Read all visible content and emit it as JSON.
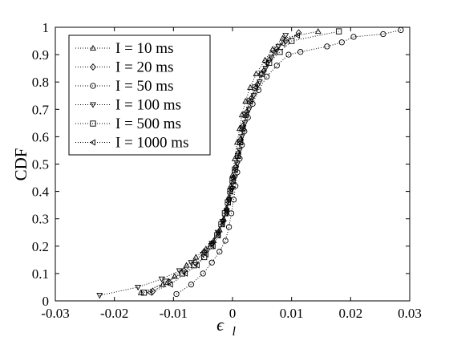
{
  "chart_data": {
    "type": "scatter",
    "title": "",
    "xlabel": "ϵ",
    "xlabel_subscript": "l",
    "ylabel": "CDF",
    "xlim": [
      -0.03,
      0.03
    ],
    "ylim": [
      0,
      1
    ],
    "x_ticks": [
      -0.03,
      -0.02,
      -0.01,
      0,
      0.01,
      0.02,
      0.03
    ],
    "x_tick_labels": [
      "-0.03",
      "-0.02",
      "-0.01",
      "0",
      "0.01",
      "0.02",
      "0.03"
    ],
    "y_ticks": [
      0,
      0.1,
      0.2,
      0.3,
      0.4,
      0.5,
      0.6,
      0.7,
      0.8,
      0.9,
      1
    ],
    "y_tick_labels": [
      "0",
      "0.1",
      "0.2",
      "0.3",
      "0.4",
      "0.5",
      "0.6",
      "0.7",
      "0.8",
      "0.9",
      "1"
    ],
    "grid": false,
    "legend_position": "top-left",
    "line_style": "dotted",
    "line_color": "#000000",
    "series": [
      {
        "name": "I = 10 ms",
        "marker": "triangle-up",
        "points": [
          [
            -0.0155,
            0.03
          ],
          [
            -0.0118,
            0.06
          ],
          [
            -0.0098,
            0.09
          ],
          [
            -0.0078,
            0.13
          ],
          [
            -0.0062,
            0.16
          ],
          [
            -0.0045,
            0.19
          ],
          [
            -0.0032,
            0.22
          ],
          [
            -0.0022,
            0.26
          ],
          [
            -0.0015,
            0.3
          ],
          [
            -0.001,
            0.34
          ],
          [
            -0.0006,
            0.38
          ],
          [
            -0.0003,
            0.42
          ],
          [
            0.0,
            0.46
          ],
          [
            0.0004,
            0.52
          ],
          [
            0.0008,
            0.58
          ],
          [
            0.0012,
            0.63
          ],
          [
            0.0016,
            0.68
          ],
          [
            0.0022,
            0.73
          ],
          [
            0.003,
            0.78
          ],
          [
            0.004,
            0.83
          ],
          [
            0.0055,
            0.88
          ],
          [
            0.0068,
            0.92
          ],
          [
            0.0085,
            0.96
          ],
          [
            0.0145,
            0.985
          ]
        ]
      },
      {
        "name": "I = 20 ms",
        "marker": "diamond",
        "points": [
          [
            -0.0135,
            0.035
          ],
          [
            -0.0108,
            0.07
          ],
          [
            -0.0082,
            0.11
          ],
          [
            -0.0063,
            0.14
          ],
          [
            -0.0048,
            0.18
          ],
          [
            -0.0035,
            0.21
          ],
          [
            -0.0024,
            0.25
          ],
          [
            -0.0016,
            0.29
          ],
          [
            -0.001,
            0.33
          ],
          [
            -0.0006,
            0.37
          ],
          [
            -0.0002,
            0.41
          ],
          [
            0.0001,
            0.45
          ],
          [
            0.0006,
            0.49
          ],
          [
            0.001,
            0.54
          ],
          [
            0.0014,
            0.59
          ],
          [
            0.0018,
            0.64
          ],
          [
            0.0024,
            0.69
          ],
          [
            0.0032,
            0.74
          ],
          [
            0.0042,
            0.79
          ],
          [
            0.0053,
            0.84
          ],
          [
            0.0062,
            0.88
          ],
          [
            0.0075,
            0.92
          ],
          [
            0.009,
            0.95
          ],
          [
            0.0112,
            0.98
          ]
        ]
      },
      {
        "name": "I = 50 ms",
        "marker": "circle",
        "points": [
          [
            -0.0095,
            0.025
          ],
          [
            -0.007,
            0.06
          ],
          [
            -0.005,
            0.1
          ],
          [
            -0.0035,
            0.14
          ],
          [
            -0.0022,
            0.18
          ],
          [
            -0.0012,
            0.22
          ],
          [
            -0.0006,
            0.27
          ],
          [
            -0.0002,
            0.32
          ],
          [
            0.0002,
            0.37
          ],
          [
            0.0005,
            0.42
          ],
          [
            0.0008,
            0.47
          ],
          [
            0.0012,
            0.52
          ],
          [
            0.0016,
            0.57
          ],
          [
            0.002,
            0.62
          ],
          [
            0.0026,
            0.67
          ],
          [
            0.0034,
            0.72
          ],
          [
            0.0044,
            0.77
          ],
          [
            0.0058,
            0.82
          ],
          [
            0.0075,
            0.86
          ],
          [
            0.0095,
            0.9
          ],
          [
            0.0115,
            0.91
          ],
          [
            0.016,
            0.93
          ],
          [
            0.0185,
            0.945
          ],
          [
            0.0205,
            0.965
          ],
          [
            0.0255,
            0.975
          ],
          [
            0.0285,
            0.99
          ]
        ]
      },
      {
        "name": "I = 100 ms",
        "marker": "triangle-down",
        "points": [
          [
            -0.0225,
            0.02
          ],
          [
            -0.016,
            0.05
          ],
          [
            -0.012,
            0.08
          ],
          [
            -0.009,
            0.11
          ],
          [
            -0.007,
            0.14
          ],
          [
            -0.005,
            0.17
          ],
          [
            -0.0035,
            0.21
          ],
          [
            -0.0025,
            0.25
          ],
          [
            -0.0017,
            0.29
          ],
          [
            -0.001,
            0.33
          ],
          [
            -0.0005,
            0.37
          ],
          [
            0.0,
            0.41
          ],
          [
            0.0004,
            0.45
          ],
          [
            0.0008,
            0.5
          ],
          [
            0.0012,
            0.55
          ],
          [
            0.0016,
            0.6
          ],
          [
            0.0021,
            0.65
          ],
          [
            0.0028,
            0.7
          ],
          [
            0.0036,
            0.75
          ],
          [
            0.0046,
            0.8
          ],
          [
            0.0056,
            0.85
          ],
          [
            0.0066,
            0.89
          ],
          [
            0.0078,
            0.93
          ],
          [
            0.009,
            0.97
          ]
        ]
      },
      {
        "name": "I = 500 ms",
        "marker": "square",
        "points": [
          [
            -0.015,
            0.03
          ],
          [
            -0.0112,
            0.07
          ],
          [
            -0.0085,
            0.1
          ],
          [
            -0.0065,
            0.13
          ],
          [
            -0.0048,
            0.16
          ],
          [
            -0.0036,
            0.2
          ],
          [
            -0.0026,
            0.24
          ],
          [
            -0.0019,
            0.28
          ],
          [
            -0.0013,
            0.32
          ],
          [
            -0.0008,
            0.36
          ],
          [
            -0.0004,
            0.4
          ],
          [
            0.0,
            0.44
          ],
          [
            0.0004,
            0.48
          ],
          [
            0.0009,
            0.53
          ],
          [
            0.0013,
            0.58
          ],
          [
            0.0017,
            0.63
          ],
          [
            0.0022,
            0.68
          ],
          [
            0.0029,
            0.73
          ],
          [
            0.0038,
            0.78
          ],
          [
            0.005,
            0.83
          ],
          [
            0.0062,
            0.87
          ],
          [
            0.008,
            0.91
          ],
          [
            0.01,
            0.95
          ],
          [
            0.018,
            0.985
          ]
        ]
      },
      {
        "name": "I = 1000 ms",
        "marker": "triangle-left",
        "points": [
          [
            -0.014,
            0.03
          ],
          [
            -0.0105,
            0.06
          ],
          [
            -0.008,
            0.1
          ],
          [
            -0.006,
            0.13
          ],
          [
            -0.0045,
            0.17
          ],
          [
            -0.0033,
            0.2
          ],
          [
            -0.0024,
            0.24
          ],
          [
            -0.0017,
            0.28
          ],
          [
            -0.0011,
            0.32
          ],
          [
            -0.0007,
            0.36
          ],
          [
            -0.0003,
            0.4
          ],
          [
            0.0001,
            0.44
          ],
          [
            0.0005,
            0.48
          ],
          [
            0.001,
            0.53
          ],
          [
            0.0014,
            0.58
          ],
          [
            0.0018,
            0.63
          ],
          [
            0.0023,
            0.68
          ],
          [
            0.003,
            0.73
          ],
          [
            0.0039,
            0.78
          ],
          [
            0.0048,
            0.83
          ],
          [
            0.0058,
            0.87
          ],
          [
            0.007,
            0.91
          ],
          [
            0.0085,
            0.94
          ],
          [
            0.011,
            0.97
          ]
        ]
      }
    ]
  }
}
